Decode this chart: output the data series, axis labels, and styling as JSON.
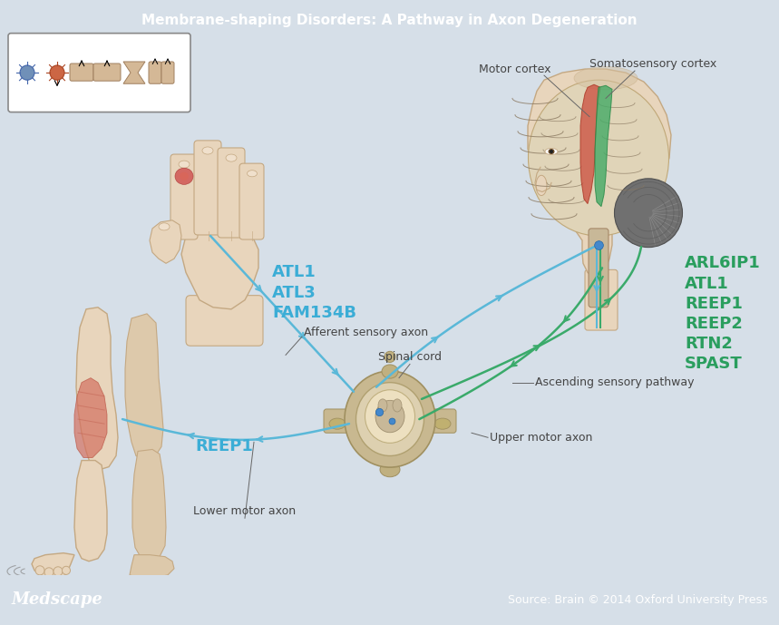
{
  "title": "Membrane-shaping Disorders: A Pathway in Axon Degeneration",
  "bg_color": "#d6dfe8",
  "header_color": "#2b7bb9",
  "footer_color": "#2b7bb9",
  "footer_left": "Medscape",
  "footer_right": "Source: Brain © 2014 Oxford University Press",
  "blue_genes": [
    "ATL1",
    "ATL3",
    "FAM134B"
  ],
  "green_genes": [
    "ARL6IP1",
    "ATL1",
    "REEP1",
    "REEP2",
    "RTN2",
    "SPAST"
  ],
  "blue_color": "#3badd6",
  "green_color": "#2a9e5e",
  "label_color": "#444444",
  "skin_color": "#e8d5bc",
  "skin_edge": "#c4a882",
  "line_blue": "#5ab8d8",
  "line_green": "#3aaa6a",
  "main_bg": "#e8ecf0"
}
